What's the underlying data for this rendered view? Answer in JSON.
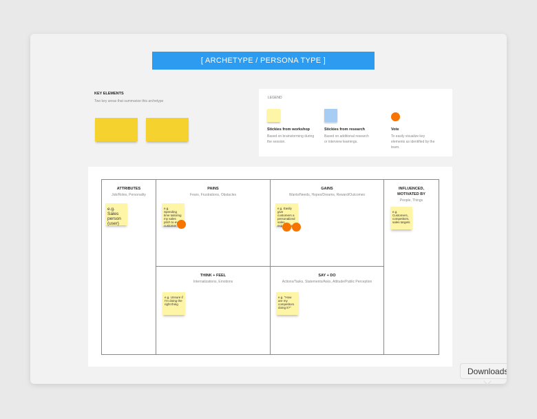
{
  "title": "[ ARCHETYPE / PERSONA TYPE ]",
  "key_elements": {
    "heading": "KEY ELEMENTS",
    "subtitle": "Two key areas that summarize this archetype"
  },
  "legend": {
    "heading": "LEGEND",
    "items": [
      {
        "title": "Stickies from workshop",
        "desc": "Based on brainstorming during the session.",
        "color": "#fef5a6"
      },
      {
        "title": "Stickies from research",
        "desc": "Based on additional research or interview learnings.",
        "color": "#a8cdf5"
      },
      {
        "title": "Vote",
        "desc": "To easily visualize key elements as identified by the team.",
        "color": "#f77400"
      }
    ]
  },
  "cells": {
    "attributes": {
      "title": "ATTRIBUTES",
      "subtitle": "Job/Roles, Personality",
      "sticky": "e.g. Sales person (user)"
    },
    "pains": {
      "title": "PAINS",
      "subtitle": "Fears, Frustrations, Obstacles",
      "sticky": "e.g. Spending time tailoring my sales pitch to every customer",
      "votes": 1
    },
    "gains": {
      "title": "GAINS",
      "subtitle": "Wants/Needs, Hopes/Dreams, Reward/Outcomes",
      "sticky": "e.g. Easily give customers a personalized sales experience",
      "votes": 2
    },
    "influenced": {
      "title": "INFLUENCED, MOTIVATED BY",
      "subtitle": "People, Things",
      "sticky": "e.g. Customers, competitors, sales targets"
    },
    "think": {
      "title": "THINK + FEEL",
      "subtitle": "Internalizations, Emotions",
      "sticky": "e.g. Unsure if I'm doing the right thing"
    },
    "say": {
      "title": "SAY + DO",
      "subtitle": "Actions/Tasks, Statements/Asks, Attitude/Public Perception",
      "sticky": "e.g. \"How are my competitors doing it?\""
    }
  },
  "tooltip": "Downloads"
}
